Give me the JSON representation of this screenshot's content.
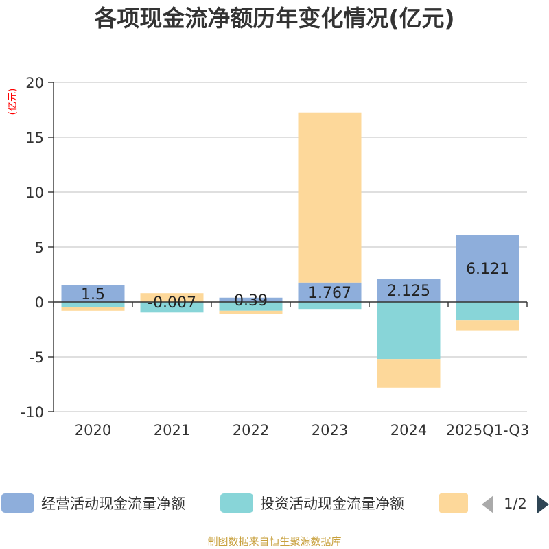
{
  "chart_data": {
    "type": "bar",
    "stacked": true,
    "title": "各项现金流净额历年变化情况(亿元)",
    "ylabel": "(亿元)",
    "xlabel": "",
    "categories": [
      "2020",
      "2021",
      "2022",
      "2023",
      "2024",
      "2025Q1-Q3"
    ],
    "ylim": [
      -10,
      20
    ],
    "yticks": [
      20,
      15,
      10,
      5,
      0,
      -5,
      -10
    ],
    "series": [
      {
        "name": "经营活动现金流量净额",
        "color": "#8eaedb",
        "values": [
          1.5,
          -0.007,
          0.39,
          1.767,
          2.125,
          6.121
        ],
        "labels": [
          "1.5",
          "-0.007",
          "0.39",
          "1.767",
          "2.125",
          "6.121"
        ]
      },
      {
        "name": "投资活动现金流量净额",
        "color": "#88d5d8",
        "values": [
          -0.5,
          -0.95,
          -0.8,
          -0.7,
          -5.2,
          -1.7
        ],
        "labels": [
          "",
          "",
          "",
          "",
          "",
          ""
        ]
      },
      {
        "name": "",
        "color": "#fdd89a",
        "values": [
          -0.3,
          0.8,
          -0.3,
          15.5,
          -2.6,
          -0.9
        ],
        "labels": [
          "",
          "",
          "",
          "",
          "",
          ""
        ]
      }
    ],
    "grid": true,
    "legend_position": "bottom",
    "pager": "1/2",
    "source": "制图数据来自恒生聚源数据库"
  }
}
